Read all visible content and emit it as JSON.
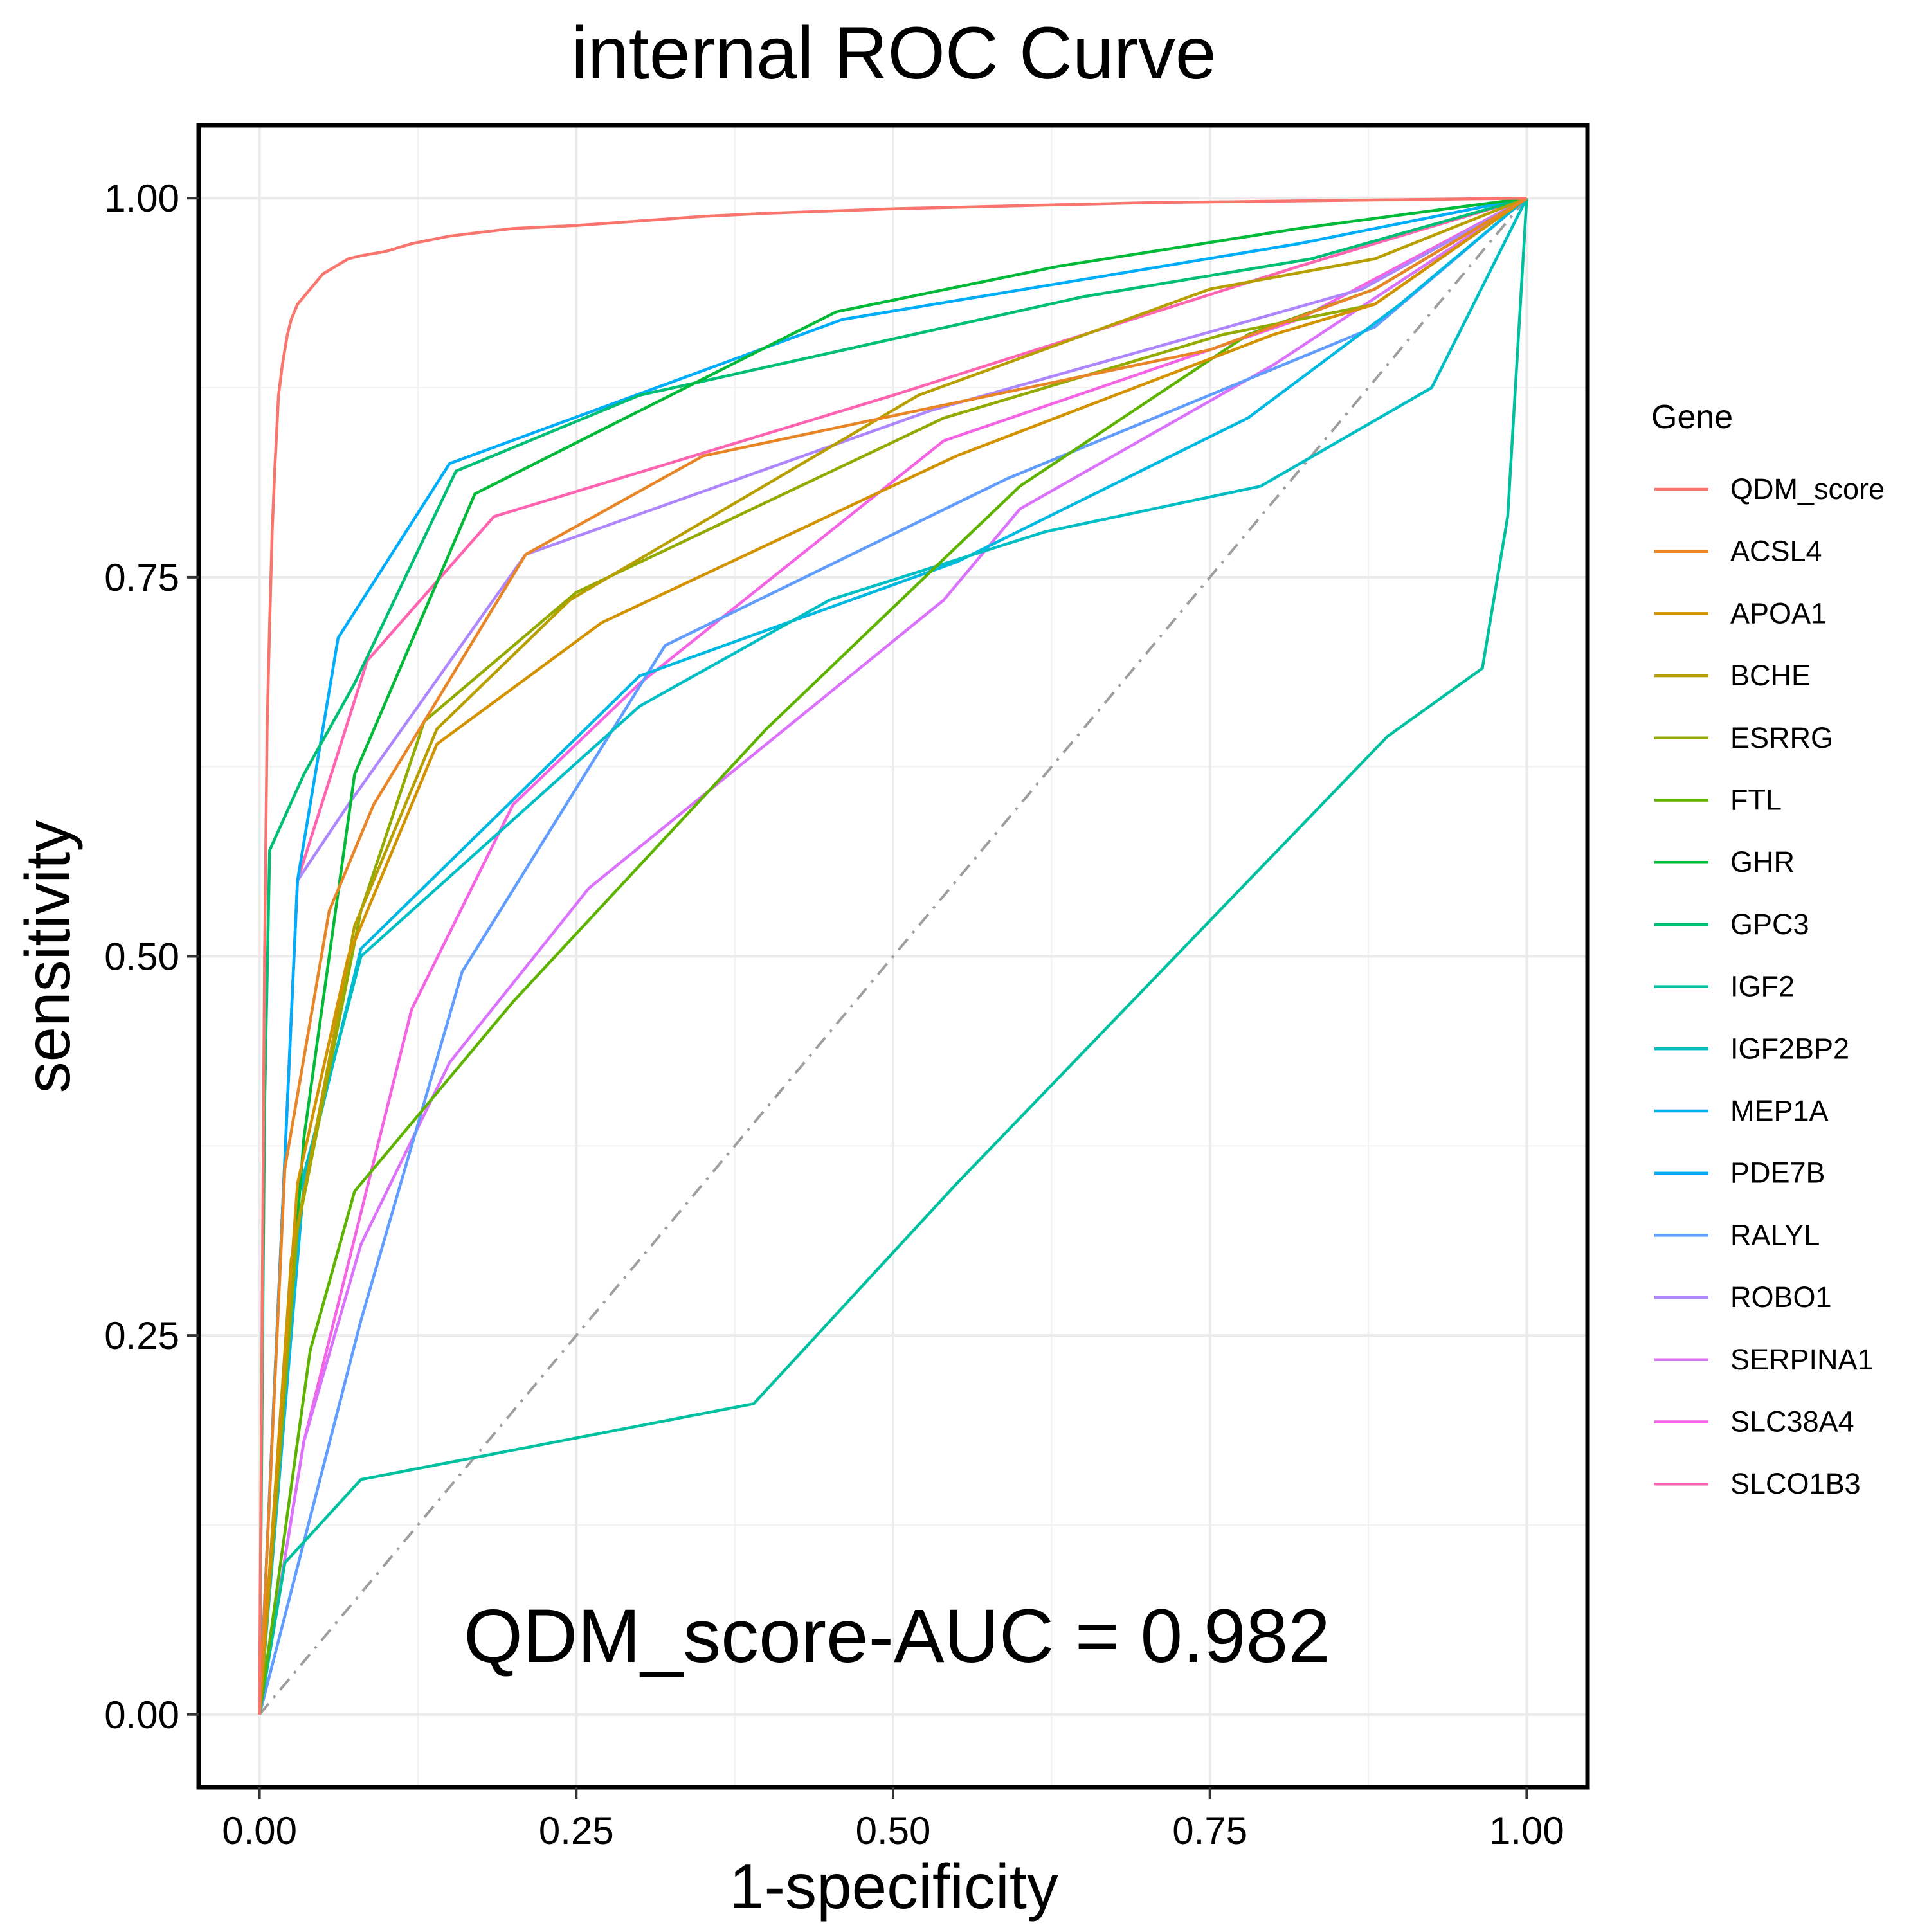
{
  "chart_data": {
    "type": "line",
    "title": "internal ROC Curve",
    "xlabel": "1-specificity",
    "ylabel": "sensitivity",
    "xlim": [
      -0.048,
      1.048
    ],
    "ylim": [
      -0.048,
      1.048
    ],
    "x_ticks": [
      0,
      0.25,
      0.5,
      0.75,
      1
    ],
    "x_tick_labels": [
      "0.00",
      "0.25",
      "0.50",
      "0.75",
      "1.00"
    ],
    "y_ticks": [
      0,
      0.25,
      0.5,
      0.75,
      1
    ],
    "y_tick_labels": [
      "0.00",
      "0.25",
      "0.50",
      "0.75",
      "1.00"
    ],
    "grid": true,
    "legend": {
      "title": "Gene",
      "position": "right"
    },
    "annotation": "QDM_score-AUC =  0.982",
    "reference_line": {
      "x": [
        0,
        1
      ],
      "y": [
        0,
        1
      ],
      "style": "dashdot",
      "color": "#9E9E9E"
    },
    "series": [
      {
        "name": "QDM_score",
        "color": "#F8766D",
        "x": [
          0,
          0.002,
          0.004,
          0.006,
          0.008,
          0.01,
          0.012,
          0.015,
          0.018,
          0.02,
          0.022,
          0.025,
          0.03,
          0.035,
          0.04,
          0.045,
          0.05,
          0.06,
          0.07,
          0.08,
          0.1,
          0.12,
          0.15,
          0.18,
          0.2,
          0.25,
          0.3,
          0.35,
          0.4,
          0.5,
          0.6,
          0.7,
          0.8,
          0.9,
          1
        ],
        "y": [
          0,
          0.25,
          0.5,
          0.65,
          0.72,
          0.78,
          0.82,
          0.87,
          0.89,
          0.9,
          0.91,
          0.92,
          0.93,
          0.935,
          0.94,
          0.945,
          0.95,
          0.955,
          0.96,
          0.962,
          0.965,
          0.97,
          0.975,
          0.978,
          0.98,
          0.982,
          0.985,
          0.988,
          0.99,
          0.993,
          0.995,
          0.997,
          0.998,
          0.999,
          1
        ]
      },
      {
        "name": "ACSL4",
        "color": "#E88526",
        "x": [
          0,
          0.02,
          0.055,
          0.09,
          0.21,
          0.35,
          0.52,
          0.75,
          0.88,
          1
        ],
        "y": [
          0,
          0.36,
          0.53,
          0.6,
          0.765,
          0.83,
          0.86,
          0.9,
          0.94,
          1
        ]
      },
      {
        "name": "APOA1",
        "color": "#D39200",
        "x": [
          0,
          0.03,
          0.07,
          0.14,
          0.27,
          0.55,
          0.8,
          0.88,
          1
        ],
        "y": [
          0,
          0.35,
          0.5,
          0.64,
          0.72,
          0.83,
          0.91,
          0.93,
          1
        ]
      },
      {
        "name": "BCHE",
        "color": "#B79F00",
        "x": [
          0,
          0.025,
          0.075,
          0.14,
          0.245,
          0.52,
          0.75,
          0.88,
          1
        ],
        "y": [
          0,
          0.3,
          0.52,
          0.65,
          0.735,
          0.87,
          0.94,
          0.96,
          1
        ]
      },
      {
        "name": "ESRRG",
        "color": "#93AA00",
        "x": [
          0,
          0.03,
          0.08,
          0.13,
          0.25,
          0.54,
          0.76,
          0.88,
          1
        ],
        "y": [
          0,
          0.32,
          0.53,
          0.655,
          0.74,
          0.855,
          0.91,
          0.93,
          1
        ]
      },
      {
        "name": "FTL",
        "color": "#5EB300",
        "x": [
          0,
          0.04,
          0.075,
          0.2,
          0.4,
          0.6,
          0.78,
          0.88,
          1
        ],
        "y": [
          0,
          0.24,
          0.345,
          0.47,
          0.65,
          0.81,
          0.91,
          0.94,
          1
        ]
      },
      {
        "name": "GHR",
        "color": "#00BA38",
        "x": [
          0,
          0.035,
          0.075,
          0.17,
          0.455,
          0.63,
          0.82,
          1
        ],
        "y": [
          0,
          0.38,
          0.62,
          0.805,
          0.925,
          0.955,
          0.98,
          1
        ]
      },
      {
        "name": "GPC3",
        "color": "#00BF74",
        "x": [
          0,
          0.004,
          0.008,
          0.035,
          0.075,
          0.155,
          0.3,
          0.65,
          0.83,
          1
        ],
        "y": [
          0,
          0.4,
          0.57,
          0.62,
          0.68,
          0.82,
          0.87,
          0.935,
          0.96,
          1
        ]
      },
      {
        "name": "IGF2",
        "color": "#00C19F",
        "x": [
          0,
          0.02,
          0.08,
          0.39,
          0.55,
          0.89,
          0.965,
          0.985,
          1
        ],
        "y": [
          0,
          0.1,
          0.155,
          0.205,
          0.35,
          0.645,
          0.69,
          0.79,
          1
        ]
      },
      {
        "name": "IGF2BP2",
        "color": "#00BFC4",
        "x": [
          0,
          0.03,
          0.08,
          0.3,
          0.45,
          0.62,
          0.79,
          0.925,
          1
        ],
        "y": [
          0,
          0.34,
          0.5,
          0.665,
          0.735,
          0.78,
          0.81,
          0.875,
          1
        ]
      },
      {
        "name": "MEP1A",
        "color": "#00B9E3",
        "x": [
          0,
          0.035,
          0.08,
          0.3,
          0.55,
          0.78,
          0.9,
          1
        ],
        "y": [
          0,
          0.35,
          0.505,
          0.685,
          0.76,
          0.855,
          0.93,
          1
        ]
      },
      {
        "name": "PDE7B",
        "color": "#00ADFA",
        "x": [
          0,
          0.03,
          0.062,
          0.15,
          0.46,
          0.82,
          1
        ],
        "y": [
          0,
          0.55,
          0.71,
          0.825,
          0.92,
          0.97,
          1
        ]
      },
      {
        "name": "RALYL",
        "color": "#619CFF",
        "x": [
          0,
          0.08,
          0.16,
          0.32,
          0.59,
          0.88,
          1
        ],
        "y": [
          0,
          0.26,
          0.49,
          0.705,
          0.815,
          0.915,
          1
        ]
      },
      {
        "name": "ROBO1",
        "color": "#AE87FF",
        "x": [
          0,
          0.03,
          0.07,
          0.21,
          0.53,
          0.87,
          1
        ],
        "y": [
          0,
          0.55,
          0.6,
          0.765,
          0.86,
          0.94,
          1
        ]
      },
      {
        "name": "SERPINA1",
        "color": "#DB72FB",
        "x": [
          0,
          0.035,
          0.08,
          0.15,
          0.26,
          0.54,
          0.6,
          0.8,
          1
        ],
        "y": [
          0,
          0.18,
          0.31,
          0.43,
          0.545,
          0.735,
          0.795,
          0.89,
          1
        ]
      },
      {
        "name": "SLC38A4",
        "color": "#F564E3",
        "x": [
          0,
          0.035,
          0.12,
          0.2,
          0.3,
          0.54,
          0.82,
          1
        ],
        "y": [
          0,
          0.18,
          0.465,
          0.6,
          0.68,
          0.84,
          0.92,
          1
        ]
      },
      {
        "name": "SLCO1B3",
        "color": "#FF64B0",
        "x": [
          0,
          0.03,
          0.085,
          0.185,
          0.5,
          0.82,
          1
        ],
        "y": [
          0,
          0.55,
          0.695,
          0.79,
          0.87,
          0.955,
          1
        ]
      }
    ]
  }
}
